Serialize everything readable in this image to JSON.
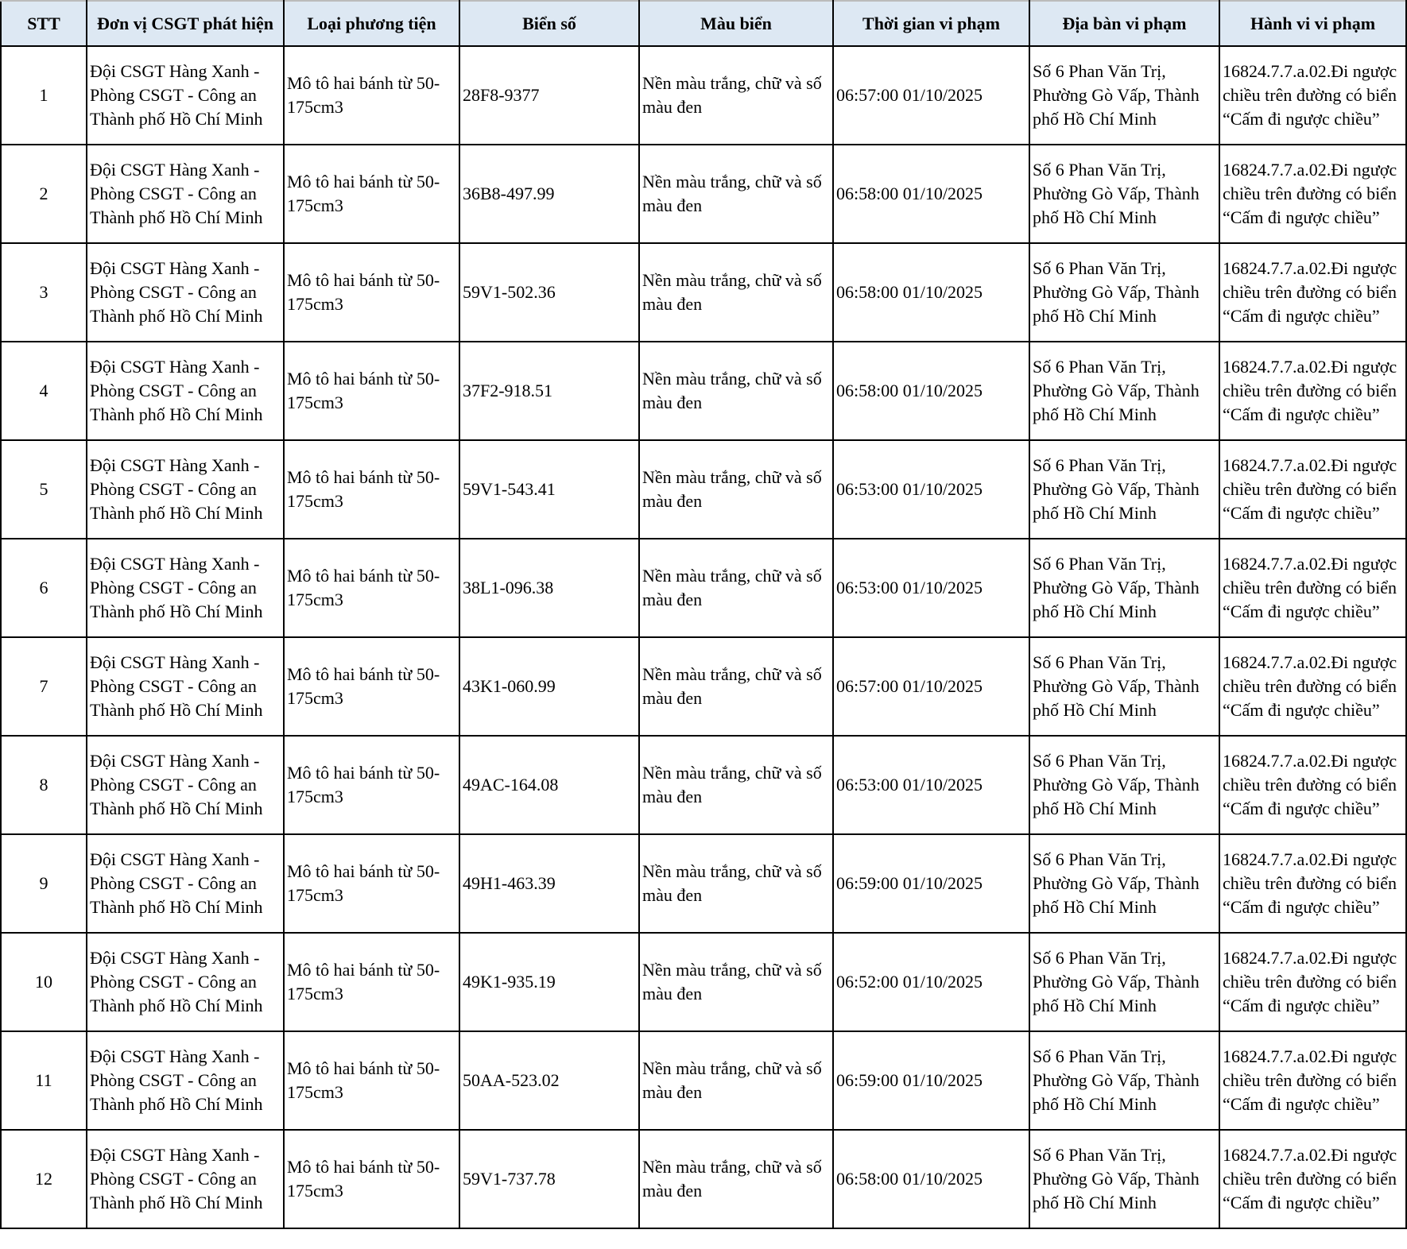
{
  "headers": [
    "STT",
    "Đơn vị CSGT phát hiện",
    "Loại phương tiện",
    "Biển số",
    "Màu biển",
    "Thời gian vi phạm",
    "Địa bàn vi phạm",
    "Hành vi vi phạm"
  ],
  "rows": [
    {
      "stt": "1",
      "unit": "Đội CSGT Hàng Xanh - Phòng CSGT - Công an Thành phố Hồ Chí Minh",
      "vehicle": "Mô tô hai bánh từ 50-175cm3",
      "plate": "28F8-9377",
      "plate_color": "Nền màu trắng, chữ và số màu đen",
      "time": "06:57:00 01/10/2025",
      "location": "Số 6 Phan Văn Trị, Phường Gò Vấp, Thành phố Hồ Chí Minh",
      "violation": "16824.7.7.a.02.Đi ngược chiều trên đường có biển “Cấm đi ngược chiều”"
    },
    {
      "stt": "2",
      "unit": "Đội CSGT Hàng Xanh - Phòng CSGT - Công an Thành phố Hồ Chí Minh",
      "vehicle": "Mô tô hai bánh từ 50-175cm3",
      "plate": "36B8-497.99",
      "plate_color": "Nền màu trắng, chữ và số màu đen",
      "time": "06:58:00 01/10/2025",
      "location": "Số 6 Phan Văn Trị, Phường Gò Vấp, Thành phố Hồ Chí Minh",
      "violation": "16824.7.7.a.02.Đi ngược chiều trên đường có biển “Cấm đi ngược chiều”"
    },
    {
      "stt": "3",
      "unit": "Đội CSGT Hàng Xanh - Phòng CSGT - Công an Thành phố Hồ Chí Minh",
      "vehicle": "Mô tô hai bánh từ 50-175cm3",
      "plate": "59V1-502.36",
      "plate_color": "Nền màu trắng, chữ và số màu đen",
      "time": "06:58:00 01/10/2025",
      "location": "Số 6 Phan Văn Trị, Phường Gò Vấp, Thành phố Hồ Chí Minh",
      "violation": "16824.7.7.a.02.Đi ngược chiều trên đường có biển “Cấm đi ngược chiều”"
    },
    {
      "stt": "4",
      "unit": "Đội CSGT Hàng Xanh - Phòng CSGT - Công an Thành phố Hồ Chí Minh",
      "vehicle": "Mô tô hai bánh từ 50-175cm3",
      "plate": "37F2-918.51",
      "plate_color": "Nền màu trắng, chữ và số màu đen",
      "time": "06:58:00 01/10/2025",
      "location": "Số 6 Phan Văn Trị, Phường Gò Vấp, Thành phố Hồ Chí Minh",
      "violation": "16824.7.7.a.02.Đi ngược chiều trên đường có biển “Cấm đi ngược chiều”"
    },
    {
      "stt": "5",
      "unit": "Đội CSGT Hàng Xanh - Phòng CSGT - Công an Thành phố Hồ Chí Minh",
      "vehicle": "Mô tô hai bánh từ 50-175cm3",
      "plate": "59V1-543.41",
      "plate_color": "Nền màu trắng, chữ và số màu đen",
      "time": "06:53:00 01/10/2025",
      "location": "Số 6 Phan Văn Trị, Phường Gò Vấp, Thành phố Hồ Chí Minh",
      "violation": "16824.7.7.a.02.Đi ngược chiều trên đường có biển “Cấm đi ngược chiều”"
    },
    {
      "stt": "6",
      "unit": "Đội CSGT Hàng Xanh - Phòng CSGT - Công an Thành phố Hồ Chí Minh",
      "vehicle": "Mô tô hai bánh từ 50-175cm3",
      "plate": "38L1-096.38",
      "plate_color": "Nền màu trắng, chữ và số màu đen",
      "time": "06:53:00 01/10/2025",
      "location": "Số 6 Phan Văn Trị, Phường Gò Vấp, Thành phố Hồ Chí Minh",
      "violation": "16824.7.7.a.02.Đi ngược chiều trên đường có biển “Cấm đi ngược chiều”"
    },
    {
      "stt": "7",
      "unit": "Đội CSGT Hàng Xanh - Phòng CSGT - Công an Thành phố Hồ Chí Minh",
      "vehicle": "Mô tô hai bánh từ 50-175cm3",
      "plate": "43K1-060.99",
      "plate_color": "Nền màu trắng, chữ và số màu đen",
      "time": "06:57:00 01/10/2025",
      "location": "Số 6 Phan Văn Trị, Phường Gò Vấp, Thành phố Hồ Chí Minh",
      "violation": "16824.7.7.a.02.Đi ngược chiều trên đường có biển “Cấm đi ngược chiều”"
    },
    {
      "stt": "8",
      "unit": "Đội CSGT Hàng Xanh - Phòng CSGT - Công an Thành phố Hồ Chí Minh",
      "vehicle": "Mô tô hai bánh từ 50-175cm3",
      "plate": "49AC-164.08",
      "plate_color": "Nền màu trắng, chữ và số màu đen",
      "time": "06:53:00 01/10/2025",
      "location": "Số 6 Phan Văn Trị, Phường Gò Vấp, Thành phố Hồ Chí Minh",
      "violation": "16824.7.7.a.02.Đi ngược chiều trên đường có biển “Cấm đi ngược chiều”"
    },
    {
      "stt": "9",
      "unit": "Đội CSGT Hàng Xanh - Phòng CSGT - Công an Thành phố Hồ Chí Minh",
      "vehicle": "Mô tô hai bánh từ 50-175cm3",
      "plate": "49H1-463.39",
      "plate_color": "Nền màu trắng, chữ và số màu đen",
      "time": "06:59:00 01/10/2025",
      "location": "Số 6 Phan Văn Trị, Phường Gò Vấp, Thành phố Hồ Chí Minh",
      "violation": "16824.7.7.a.02.Đi ngược chiều trên đường có biển “Cấm đi ngược chiều”"
    },
    {
      "stt": "10",
      "unit": "Đội CSGT Hàng Xanh - Phòng CSGT - Công an Thành phố Hồ Chí Minh",
      "vehicle": "Mô tô hai bánh từ 50-175cm3",
      "plate": "49K1-935.19",
      "plate_color": "Nền màu trắng, chữ và số màu đen",
      "time": "06:52:00 01/10/2025",
      "location": "Số 6 Phan Văn Trị, Phường Gò Vấp, Thành phố Hồ Chí Minh",
      "violation": "16824.7.7.a.02.Đi ngược chiều trên đường có biển “Cấm đi ngược chiều”"
    },
    {
      "stt": "11",
      "unit": "Đội CSGT Hàng Xanh - Phòng CSGT - Công an Thành phố Hồ Chí Minh",
      "vehicle": "Mô tô hai bánh từ 50-175cm3",
      "plate": "50AA-523.02",
      "plate_color": "Nền màu trắng, chữ và số màu đen",
      "time": "06:59:00 01/10/2025",
      "location": "Số 6 Phan Văn Trị, Phường Gò Vấp, Thành phố Hồ Chí Minh",
      "violation": "16824.7.7.a.02.Đi ngược chiều trên đường có biển “Cấm đi ngược chiều”"
    },
    {
      "stt": "12",
      "unit": "Đội CSGT Hàng Xanh - Phòng CSGT - Công an Thành phố Hồ Chí Minh",
      "vehicle": "Mô tô hai bánh từ 50-175cm3",
      "plate": "59V1-737.78",
      "plate_color": "Nền màu trắng, chữ và số màu đen",
      "time": "06:58:00 01/10/2025",
      "location": "Số 6 Phan Văn Trị, Phường Gò Vấp, Thành phố Hồ Chí Minh",
      "violation": "16824.7.7.a.02.Đi ngược chiều trên đường có biển “Cấm đi ngược chiều”"
    }
  ],
  "colors": {
    "header_bg": "#dde8f3",
    "border": "#000000"
  }
}
